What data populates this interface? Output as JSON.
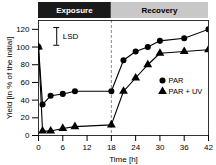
{
  "chart_data": {
    "type": "line",
    "xlabel": "Time [h]",
    "ylabel": "Yield [in % of the initial]",
    "x": [
      0,
      1,
      3,
      6,
      9,
      18,
      21,
      24,
      27,
      30,
      36,
      42
    ],
    "series": [
      {
        "name": "PAR",
        "color": "black",
        "marker": "circle",
        "values": [
          100,
          35,
          45,
          47,
          50,
          50,
          85,
          95,
          100,
          107,
          110,
          120
        ]
      },
      {
        "name": "PAR + UV",
        "color": "black",
        "marker": "triangle",
        "values": [
          100,
          5,
          5,
          8,
          10,
          12,
          50,
          65,
          80,
          93,
          95,
          97
        ]
      }
    ],
    "xlim": [
      0,
      42
    ],
    "ylim": [
      0,
      130
    ],
    "xticks": [
      0,
      6,
      12,
      18,
      24,
      30,
      36,
      42
    ],
    "yticks": [
      0,
      20,
      40,
      60,
      80,
      100,
      120
    ],
    "grid": false,
    "legend": "right",
    "vlines": [
      {
        "x": 18,
        "color": "#888888",
        "line_style": "dashed"
      }
    ],
    "error_bar": {
      "x": 4.5,
      "low": 102,
      "high": 122,
      "label": "LSD"
    },
    "bands": [
      {
        "label": "Exposure",
        "from": 0,
        "to": 18,
        "color": "#1a1a1a",
        "label_color": "white"
      },
      {
        "label": "Recovery",
        "from": 18,
        "to": 42,
        "color": "#c8c8c8",
        "label_color": "black"
      }
    ]
  }
}
